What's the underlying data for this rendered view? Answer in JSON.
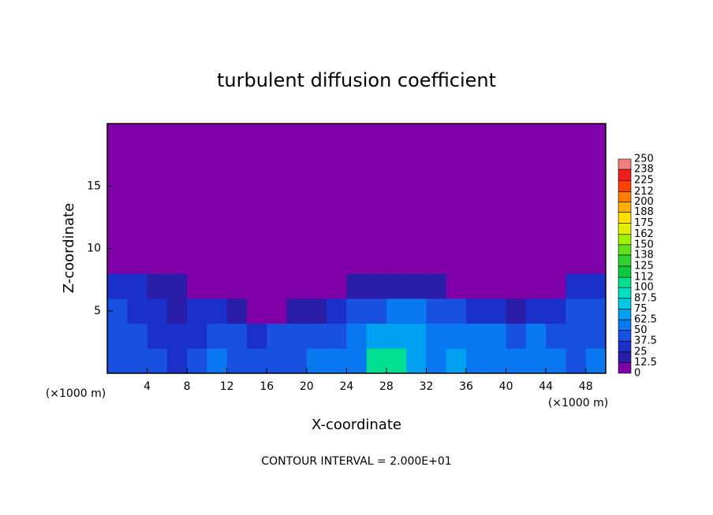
{
  "chart_data": {
    "type": "heatmap",
    "title": "turbulent diffusion coefficient",
    "xlabel": "X-coordinate",
    "ylabel": "Z-coordinate",
    "x_unit": "(×1000 m)",
    "y_unit": "(×1000 m)",
    "annotation": "CONTOUR INTERVAL = 2.000E+01",
    "xlim": [
      0,
      50
    ],
    "ylim": [
      0,
      20
    ],
    "xticks": [
      4,
      8,
      12,
      16,
      20,
      24,
      28,
      32,
      36,
      40,
      44,
      48
    ],
    "yticks": [
      5,
      10,
      15
    ],
    "x": [
      1,
      3,
      5,
      7,
      9,
      11,
      13,
      15,
      17,
      19,
      21,
      23,
      25,
      27,
      29,
      31,
      33,
      35,
      37,
      39,
      41,
      43,
      45,
      47,
      49
    ],
    "y": [
      1,
      3,
      5,
      7,
      9,
      11,
      13,
      15,
      17,
      19
    ],
    "z": [
      [
        45,
        45,
        40,
        30,
        40,
        50,
        40,
        45,
        40,
        45,
        50,
        55,
        60,
        100,
        105,
        70,
        60,
        70,
        60,
        55,
        55,
        50,
        50,
        45,
        50
      ],
      [
        45,
        45,
        35,
        25,
        35,
        45,
        40,
        35,
        40,
        45,
        40,
        45,
        50,
        65,
        70,
        65,
        55,
        60,
        55,
        50,
        45,
        50,
        45,
        40,
        45
      ],
      [
        40,
        35,
        30,
        20,
        30,
        25,
        20,
        10,
        5,
        15,
        20,
        35,
        40,
        45,
        55,
        50,
        40,
        45,
        35,
        30,
        20,
        30,
        35,
        40,
        40
      ],
      [
        30,
        25,
        20,
        15,
        10,
        10,
        5,
        0,
        0,
        0,
        5,
        10,
        15,
        20,
        20,
        20,
        15,
        5,
        0,
        0,
        0,
        0,
        10,
        25,
        30
      ],
      [
        0,
        0,
        0,
        0,
        0,
        0,
        0,
        0,
        0,
        0,
        0,
        0,
        0,
        0,
        0,
        0,
        0,
        0,
        0,
        0,
        0,
        0,
        0,
        0,
        0
      ],
      [
        0,
        0,
        0,
        0,
        0,
        0,
        0,
        0,
        0,
        0,
        0,
        0,
        0,
        0,
        0,
        0,
        0,
        0,
        0,
        0,
        0,
        0,
        0,
        0,
        0
      ],
      [
        0,
        0,
        0,
        0,
        0,
        0,
        0,
        0,
        0,
        0,
        0,
        0,
        0,
        0,
        0,
        0,
        0,
        0,
        0,
        0,
        0,
        0,
        0,
        0,
        0
      ],
      [
        0,
        0,
        0,
        0,
        0,
        0,
        0,
        0,
        0,
        0,
        0,
        0,
        0,
        0,
        0,
        0,
        0,
        0,
        0,
        0,
        0,
        0,
        0,
        0,
        0
      ],
      [
        0,
        0,
        0,
        0,
        0,
        0,
        0,
        0,
        0,
        0,
        0,
        0,
        0,
        0,
        0,
        0,
        0,
        0,
        0,
        0,
        0,
        0,
        0,
        0,
        0
      ],
      [
        0,
        0,
        0,
        0,
        0,
        0,
        0,
        0,
        0,
        0,
        0,
        0,
        0,
        0,
        0,
        0,
        0,
        0,
        0,
        0,
        0,
        0,
        0,
        0,
        0
      ]
    ],
    "colorbar": {
      "levels": [
        0,
        12.5,
        25,
        37.5,
        50,
        62.5,
        75,
        87.5,
        100,
        112,
        125,
        138,
        150,
        162,
        175,
        188,
        200,
        212,
        225,
        238,
        250
      ],
      "colors": [
        "#7f00a8",
        "#2a1ea8",
        "#1a30c8",
        "#1850e0",
        "#0a78f0",
        "#00a0f0",
        "#00c8e0",
        "#00e0c0",
        "#00e090",
        "#10c840",
        "#30d030",
        "#60e020",
        "#a0f000",
        "#e0f000",
        "#ffe000",
        "#ffb000",
        "#ff8000",
        "#ff4000",
        "#f02020",
        "#f08080"
      ]
    }
  }
}
